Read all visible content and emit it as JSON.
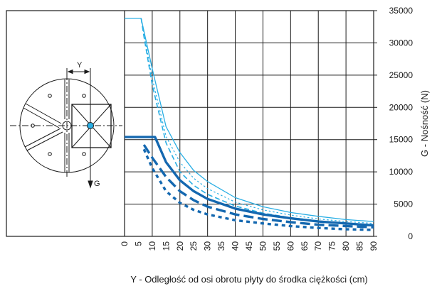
{
  "chart_data": {
    "type": "line",
    "xlabel": "Y - Odległość od osi obrotu płyty do środka ciężkości (cm)",
    "ylabel": "G - Nośność (N)",
    "xlim": [
      0,
      90
    ],
    "ylim": [
      0,
      35000
    ],
    "x_ticks": [
      "0",
      "5",
      "10",
      "15",
      "20",
      "25",
      "30",
      "35",
      "40",
      "45",
      "50",
      "55",
      "60",
      "65",
      "70",
      "75",
      "80",
      "85",
      "90"
    ],
    "y_ticks": [
      "0",
      "5000",
      "10000",
      "15000",
      "20000",
      "25000",
      "30000",
      "35000"
    ],
    "grid": true,
    "legend": "none",
    "colors": {
      "light": "#29aee4",
      "dark": "#1468b0",
      "grid": "#1a1a1a"
    },
    "series": [
      {
        "color": "light",
        "style": "solid",
        "width": 1.3,
        "points": [
          [
            0,
            33800
          ],
          [
            6,
            33800
          ],
          [
            10,
            26000
          ],
          [
            15,
            17000
          ],
          [
            20,
            13000
          ],
          [
            25,
            10200
          ],
          [
            30,
            8500
          ],
          [
            40,
            6000
          ],
          [
            50,
            4600
          ],
          [
            60,
            3700
          ],
          [
            70,
            3100
          ],
          [
            80,
            2600
          ],
          [
            90,
            2300
          ]
        ]
      },
      {
        "color": "light",
        "style": "dashed",
        "width": 1.6,
        "points": [
          [
            6,
            33800
          ],
          [
            7,
            31000
          ],
          [
            10,
            23500
          ],
          [
            15,
            14500
          ],
          [
            20,
            10000
          ],
          [
            25,
            7900
          ],
          [
            30,
            6500
          ],
          [
            40,
            4700
          ],
          [
            50,
            3600
          ],
          [
            60,
            2900
          ],
          [
            70,
            2400
          ],
          [
            80,
            2000
          ],
          [
            90,
            1800
          ]
        ]
      },
      {
        "color": "light",
        "style": "dotted",
        "width": 1.2,
        "points": [
          [
            6,
            33800
          ],
          [
            10,
            24500
          ],
          [
            15,
            15500
          ],
          [
            20,
            11500
          ],
          [
            25,
            9000
          ],
          [
            30,
            7400
          ],
          [
            40,
            5300
          ],
          [
            50,
            4100
          ],
          [
            60,
            3300
          ],
          [
            70,
            2700
          ],
          [
            80,
            2300
          ],
          [
            90,
            2000
          ]
        ]
      },
      {
        "color": "dark",
        "style": "solid",
        "width": 3.4,
        "points": [
          [
            0,
            15400
          ],
          [
            11,
            15400
          ],
          [
            15,
            11500
          ],
          [
            20,
            8700
          ],
          [
            25,
            7000
          ],
          [
            30,
            5800
          ],
          [
            40,
            4300
          ],
          [
            50,
            3400
          ],
          [
            60,
            2800
          ],
          [
            70,
            2300
          ],
          [
            80,
            2000
          ],
          [
            90,
            1700
          ]
        ]
      },
      {
        "color": "dark",
        "style": "dashed",
        "width": 3.4,
        "points": [
          [
            7,
            14200
          ],
          [
            10,
            12200
          ],
          [
            15,
            9200
          ],
          [
            20,
            7000
          ],
          [
            25,
            5600
          ],
          [
            30,
            4600
          ],
          [
            40,
            3400
          ],
          [
            50,
            2700
          ],
          [
            60,
            2200
          ],
          [
            70,
            1800
          ],
          [
            80,
            1600
          ],
          [
            90,
            1400
          ]
        ]
      },
      {
        "color": "dark",
        "style": "dotted",
        "width": 3.4,
        "points": [
          [
            7,
            13500
          ],
          [
            10,
            10600
          ],
          [
            15,
            7000
          ],
          [
            20,
            5200
          ],
          [
            25,
            4100
          ],
          [
            30,
            3400
          ],
          [
            40,
            2500
          ],
          [
            50,
            2000
          ],
          [
            60,
            1600
          ],
          [
            70,
            1300
          ],
          [
            80,
            1100
          ],
          [
            90,
            1000
          ]
        ]
      }
    ]
  },
  "diagram": {
    "label_y": "Y",
    "label_g": "G"
  }
}
